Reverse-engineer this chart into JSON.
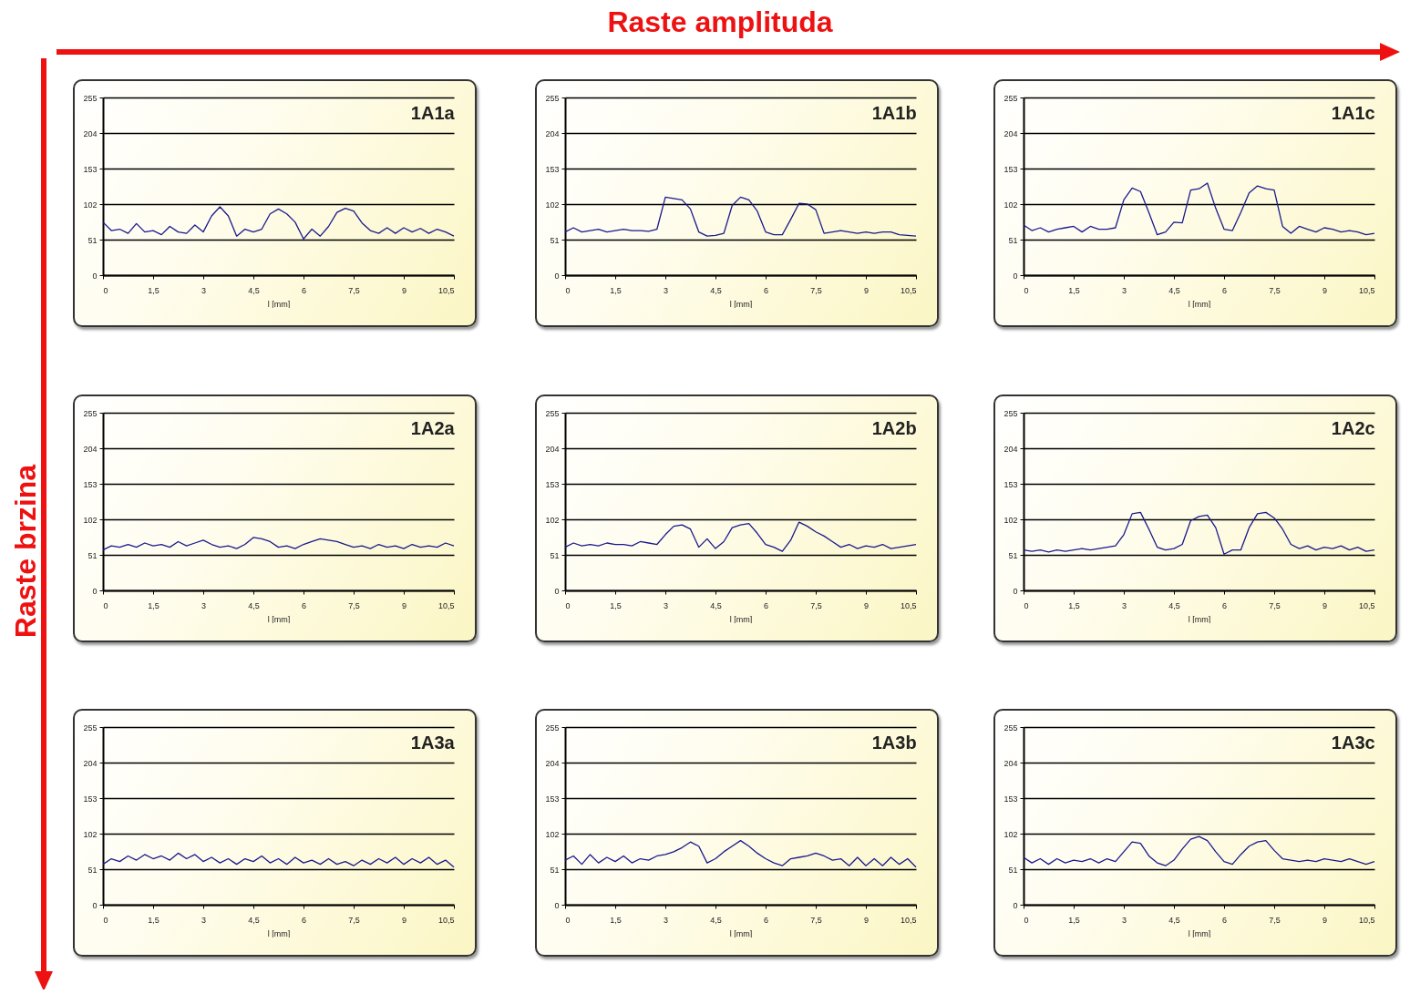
{
  "chart_data": [
    {
      "type": "line",
      "title": "1A1a",
      "xlabel": "l [mm]",
      "grid": "y",
      "xlim": [
        0,
        10.5
      ],
      "ylim": [
        0,
        255
      ],
      "xticks": [
        0,
        {
          "value": 1.5,
          "label": "1,5"
        },
        3,
        {
          "value": 4.5,
          "label": "4,5"
        },
        6,
        {
          "value": 7.5,
          "label": "7,5"
        },
        9,
        {
          "value": 10.5,
          "label": "10,5"
        }
      ],
      "yticks": [
        0,
        51,
        102,
        153,
        204,
        255
      ],
      "x": [
        0,
        0.25,
        0.5,
        0.75,
        1,
        1.25,
        1.5,
        1.75,
        2,
        2.25,
        2.5,
        2.75,
        3,
        3.25,
        3.5,
        3.75,
        4,
        4.25,
        4.5,
        4.75,
        5,
        5.25,
        5.5,
        5.75,
        6,
        6.25,
        6.5,
        6.75,
        7,
        7.25,
        7.5,
        7.75,
        8,
        8.25,
        8.5,
        8.75,
        9,
        9.25,
        9.5,
        9.75,
        10,
        10.25,
        10.5
      ],
      "series": [
        {
          "color": "#1a1a8c",
          "values": [
            76,
            64,
            66,
            60,
            74,
            62,
            64,
            58,
            70,
            62,
            60,
            72,
            62,
            85,
            98,
            85,
            56,
            66,
            62,
            66,
            88,
            95,
            88,
            76,
            52,
            66,
            56,
            70,
            90,
            96,
            92,
            75,
            64,
            60,
            68,
            60,
            68,
            62,
            67,
            60,
            66,
            62,
            56
          ]
        }
      ]
    },
    {
      "type": "line",
      "title": "1A1b",
      "xlabel": "l [mm]",
      "grid": "y",
      "xlim": [
        0,
        10.5
      ],
      "ylim": [
        0,
        255
      ],
      "xticks": [
        0,
        {
          "value": 1.5,
          "label": "1,5"
        },
        3,
        {
          "value": 4.5,
          "label": "4,5"
        },
        6,
        {
          "value": 7.5,
          "label": "7,5"
        },
        9,
        {
          "value": 10.5,
          "label": "10,5"
        }
      ],
      "yticks": [
        0,
        51,
        102,
        153,
        204,
        255
      ],
      "x": [
        0,
        0.25,
        0.5,
        0.75,
        1,
        1.25,
        1.5,
        1.75,
        2,
        2.25,
        2.5,
        2.75,
        3,
        3.25,
        3.5,
        3.75,
        4,
        4.25,
        4.5,
        4.75,
        5,
        5.25,
        5.5,
        5.75,
        6,
        6.25,
        6.5,
        6.75,
        7,
        7.25,
        7.5,
        7.75,
        8,
        8.25,
        8.5,
        8.75,
        9,
        9.25,
        9.5,
        9.75,
        10,
        10.25,
        10.5
      ],
      "series": [
        {
          "color": "#1a1a8c",
          "values": [
            62,
            68,
            62,
            64,
            66,
            62,
            64,
            66,
            64,
            64,
            63,
            66,
            112,
            110,
            108,
            95,
            62,
            56,
            57,
            60,
            100,
            112,
            108,
            92,
            62,
            58,
            58,
            80,
            103,
            102,
            94,
            60,
            62,
            64,
            62,
            60,
            62,
            60,
            62,
            62,
            58,
            57,
            56
          ]
        }
      ]
    },
    {
      "type": "line",
      "title": "1A1c",
      "xlabel": "l [mm]",
      "grid": "y",
      "xlim": [
        0,
        10.5
      ],
      "ylim": [
        0,
        255
      ],
      "xticks": [
        0,
        {
          "value": 1.5,
          "label": "1,5"
        },
        3,
        {
          "value": 4.5,
          "label": "4,5"
        },
        6,
        {
          "value": 7.5,
          "label": "7,5"
        },
        9,
        {
          "value": 10.5,
          "label": "10,5"
        }
      ],
      "yticks": [
        0,
        51,
        102,
        153,
        204,
        255
      ],
      "x": [
        0,
        0.25,
        0.5,
        0.75,
        1,
        1.25,
        1.5,
        1.75,
        2,
        2.25,
        2.5,
        2.75,
        3,
        3.25,
        3.5,
        3.75,
        4,
        4.25,
        4.5,
        4.75,
        5,
        5.25,
        5.5,
        5.75,
        6,
        6.25,
        6.5,
        6.75,
        7,
        7.25,
        7.5,
        7.75,
        8,
        8.25,
        8.5,
        8.75,
        9,
        9.25,
        9.5,
        9.75,
        10,
        10.25,
        10.5
      ],
      "series": [
        {
          "color": "#1a1a8c",
          "values": [
            72,
            64,
            68,
            62,
            66,
            68,
            70,
            62,
            70,
            66,
            66,
            68,
            108,
            125,
            120,
            90,
            58,
            62,
            76,
            75,
            122,
            124,
            132,
            96,
            66,
            64,
            90,
            118,
            128,
            124,
            122,
            70,
            60,
            70,
            66,
            62,
            68,
            66,
            62,
            64,
            62,
            58,
            60
          ]
        }
      ]
    },
    {
      "type": "line",
      "title": "1A2a",
      "xlabel": "l [mm]",
      "grid": "y",
      "xlim": [
        0,
        10.5
      ],
      "ylim": [
        0,
        255
      ],
      "xticks": [
        0,
        {
          "value": 1.5,
          "label": "1,5"
        },
        3,
        {
          "value": 4.5,
          "label": "4,5"
        },
        6,
        {
          "value": 7.5,
          "label": "7,5"
        },
        9,
        {
          "value": 10.5,
          "label": "10,5"
        }
      ],
      "yticks": [
        0,
        51,
        102,
        153,
        204,
        255
      ],
      "x": [
        0,
        0.25,
        0.5,
        0.75,
        1,
        1.25,
        1.5,
        1.75,
        2,
        2.25,
        2.5,
        2.75,
        3,
        3.25,
        3.5,
        3.75,
        4,
        4.25,
        4.5,
        4.75,
        5,
        5.25,
        5.5,
        5.75,
        6,
        6.25,
        6.5,
        6.75,
        7,
        7.25,
        7.5,
        7.75,
        8,
        8.25,
        8.5,
        8.75,
        9,
        9.25,
        9.5,
        9.75,
        10,
        10.25,
        10.5
      ],
      "series": [
        {
          "color": "#1a1a8c",
          "values": [
            58,
            64,
            62,
            66,
            62,
            68,
            64,
            66,
            62,
            70,
            64,
            68,
            72,
            66,
            62,
            64,
            60,
            66,
            76,
            74,
            70,
            62,
            64,
            60,
            66,
            70,
            74,
            72,
            70,
            66,
            62,
            64,
            60,
            66,
            62,
            64,
            60,
            66,
            62,
            64,
            62,
            68,
            64
          ]
        }
      ]
    },
    {
      "type": "line",
      "title": "1A2b",
      "xlabel": "l [mm]",
      "grid": "y",
      "xlim": [
        0,
        10.5
      ],
      "ylim": [
        0,
        255
      ],
      "xticks": [
        0,
        {
          "value": 1.5,
          "label": "1,5"
        },
        3,
        {
          "value": 4.5,
          "label": "4,5"
        },
        6,
        {
          "value": 7.5,
          "label": "7,5"
        },
        9,
        {
          "value": 10.5,
          "label": "10,5"
        }
      ],
      "yticks": [
        0,
        51,
        102,
        153,
        204,
        255
      ],
      "x": [
        0,
        0.25,
        0.5,
        0.75,
        1,
        1.25,
        1.5,
        1.75,
        2,
        2.25,
        2.5,
        2.75,
        3,
        3.25,
        3.5,
        3.75,
        4,
        4.25,
        4.5,
        4.75,
        5,
        5.25,
        5.5,
        5.75,
        6,
        6.25,
        6.5,
        6.75,
        7,
        7.25,
        7.5,
        7.75,
        8,
        8.25,
        8.5,
        8.75,
        9,
        9.25,
        9.5,
        9.75,
        10,
        10.25,
        10.5
      ],
      "series": [
        {
          "color": "#1a1a8c",
          "values": [
            62,
            68,
            64,
            66,
            64,
            68,
            66,
            66,
            64,
            70,
            68,
            66,
            80,
            92,
            94,
            88,
            62,
            74,
            60,
            70,
            90,
            94,
            96,
            82,
            66,
            62,
            56,
            72,
            98,
            92,
            84,
            78,
            70,
            62,
            66,
            60,
            64,
            62,
            66,
            60,
            62,
            64,
            66
          ]
        }
      ]
    },
    {
      "type": "line",
      "title": "1A2c",
      "xlabel": "l [mm]",
      "grid": "y",
      "xlim": [
        0,
        10.5
      ],
      "ylim": [
        0,
        255
      ],
      "xticks": [
        0,
        {
          "value": 1.5,
          "label": "1,5"
        },
        3,
        {
          "value": 4.5,
          "label": "4,5"
        },
        6,
        {
          "value": 7.5,
          "label": "7,5"
        },
        9,
        {
          "value": 10.5,
          "label": "10,5"
        }
      ],
      "yticks": [
        0,
        51,
        102,
        153,
        204,
        255
      ],
      "x": [
        0,
        0.25,
        0.5,
        0.75,
        1,
        1.25,
        1.5,
        1.75,
        2,
        2.25,
        2.5,
        2.75,
        3,
        3.25,
        3.5,
        3.75,
        4,
        4.25,
        4.5,
        4.75,
        5,
        5.25,
        5.5,
        5.75,
        6,
        6.25,
        6.5,
        6.75,
        7,
        7.25,
        7.5,
        7.75,
        8,
        8.25,
        8.5,
        8.75,
        9,
        9.25,
        9.5,
        9.75,
        10,
        10.25,
        10.5
      ],
      "series": [
        {
          "color": "#1a1a8c",
          "values": [
            58,
            56,
            58,
            55,
            58,
            56,
            58,
            60,
            58,
            60,
            62,
            64,
            80,
            110,
            112,
            88,
            62,
            58,
            60,
            66,
            100,
            106,
            108,
            90,
            52,
            58,
            58,
            90,
            110,
            112,
            104,
            88,
            66,
            60,
            64,
            58,
            62,
            60,
            64,
            58,
            62,
            56,
            58
          ]
        }
      ]
    },
    {
      "type": "line",
      "title": "1A3a",
      "xlabel": "l [mm]",
      "grid": "y",
      "xlim": [
        0,
        10.5
      ],
      "ylim": [
        0,
        255
      ],
      "xticks": [
        0,
        {
          "value": 1.5,
          "label": "1,5"
        },
        3,
        {
          "value": 4.5,
          "label": "4,5"
        },
        6,
        {
          "value": 7.5,
          "label": "7,5"
        },
        9,
        {
          "value": 10.5,
          "label": "10,5"
        }
      ],
      "yticks": [
        0,
        51,
        102,
        153,
        204,
        255
      ],
      "x": [
        0,
        0.25,
        0.5,
        0.75,
        1,
        1.25,
        1.5,
        1.75,
        2,
        2.25,
        2.5,
        2.75,
        3,
        3.25,
        3.5,
        3.75,
        4,
        4.25,
        4.5,
        4.75,
        5,
        5.25,
        5.5,
        5.75,
        6,
        6.25,
        6.5,
        6.75,
        7,
        7.25,
        7.5,
        7.75,
        8,
        8.25,
        8.5,
        8.75,
        9,
        9.25,
        9.5,
        9.75,
        10,
        10.25,
        10.5
      ],
      "series": [
        {
          "color": "#1a1a8c",
          "values": [
            58,
            66,
            62,
            70,
            64,
            72,
            66,
            70,
            64,
            74,
            66,
            72,
            62,
            68,
            60,
            66,
            58,
            66,
            62,
            70,
            60,
            66,
            58,
            68,
            60,
            64,
            58,
            66,
            58,
            62,
            56,
            64,
            58,
            66,
            60,
            68,
            58,
            66,
            60,
            68,
            58,
            64,
            54
          ]
        }
      ]
    },
    {
      "type": "line",
      "title": "1A3b",
      "xlabel": "l [mm]",
      "grid": "y",
      "xlim": [
        0,
        10.5
      ],
      "ylim": [
        0,
        255
      ],
      "xticks": [
        0,
        {
          "value": 1.5,
          "label": "1,5"
        },
        3,
        {
          "value": 4.5,
          "label": "4,5"
        },
        6,
        {
          "value": 7.5,
          "label": "7,5"
        },
        9,
        {
          "value": 10.5,
          "label": "10,5"
        }
      ],
      "yticks": [
        0,
        51,
        102,
        153,
        204,
        255
      ],
      "x": [
        0,
        0.25,
        0.5,
        0.75,
        1,
        1.25,
        1.5,
        1.75,
        2,
        2.25,
        2.5,
        2.75,
        3,
        3.25,
        3.5,
        3.75,
        4,
        4.25,
        4.5,
        4.75,
        5,
        5.25,
        5.5,
        5.75,
        6,
        6.25,
        6.5,
        6.75,
        7,
        7.25,
        7.5,
        7.75,
        8,
        8.25,
        8.5,
        8.75,
        9,
        9.25,
        9.5,
        9.75,
        10,
        10.25,
        10.5
      ],
      "series": [
        {
          "color": "#1a1a8c",
          "values": [
            64,
            70,
            58,
            72,
            60,
            68,
            62,
            70,
            60,
            66,
            64,
            70,
            72,
            76,
            82,
            90,
            84,
            60,
            66,
            76,
            84,
            92,
            84,
            74,
            66,
            60,
            56,
            66,
            68,
            70,
            74,
            70,
            64,
            66,
            56,
            68,
            56,
            66,
            56,
            68,
            58,
            66,
            54
          ]
        }
      ]
    },
    {
      "type": "line",
      "title": "1A3c",
      "xlabel": "l [mm]",
      "grid": "y",
      "xlim": [
        0,
        10.5
      ],
      "ylim": [
        0,
        255
      ],
      "xticks": [
        0,
        {
          "value": 1.5,
          "label": "1,5"
        },
        3,
        {
          "value": 4.5,
          "label": "4,5"
        },
        6,
        {
          "value": 7.5,
          "label": "7,5"
        },
        9,
        {
          "value": 10.5,
          "label": "10,5"
        }
      ],
      "yticks": [
        0,
        51,
        102,
        153,
        204,
        255
      ],
      "x": [
        0,
        0.25,
        0.5,
        0.75,
        1,
        1.25,
        1.5,
        1.75,
        2,
        2.25,
        2.5,
        2.75,
        3,
        3.25,
        3.5,
        3.75,
        4,
        4.25,
        4.5,
        4.75,
        5,
        5.25,
        5.5,
        5.75,
        6,
        6.25,
        6.5,
        6.75,
        7,
        7.25,
        7.5,
        7.75,
        8,
        8.25,
        8.5,
        8.75,
        9,
        9.25,
        9.5,
        9.75,
        10,
        10.25,
        10.5
      ],
      "series": [
        {
          "color": "#1a1a8c",
          "values": [
            68,
            60,
            66,
            58,
            66,
            60,
            64,
            62,
            66,
            60,
            66,
            62,
            76,
            90,
            88,
            70,
            60,
            56,
            64,
            80,
            94,
            98,
            92,
            76,
            62,
            58,
            72,
            84,
            90,
            92,
            78,
            66,
            64,
            62,
            64,
            62,
            66,
            64,
            62,
            66,
            62,
            58,
            62
          ]
        }
      ]
    },
    {
      "type": "other",
      "annotations": [
        "Raste amplituda",
        "Raste brzina"
      ]
    }
  ]
}
